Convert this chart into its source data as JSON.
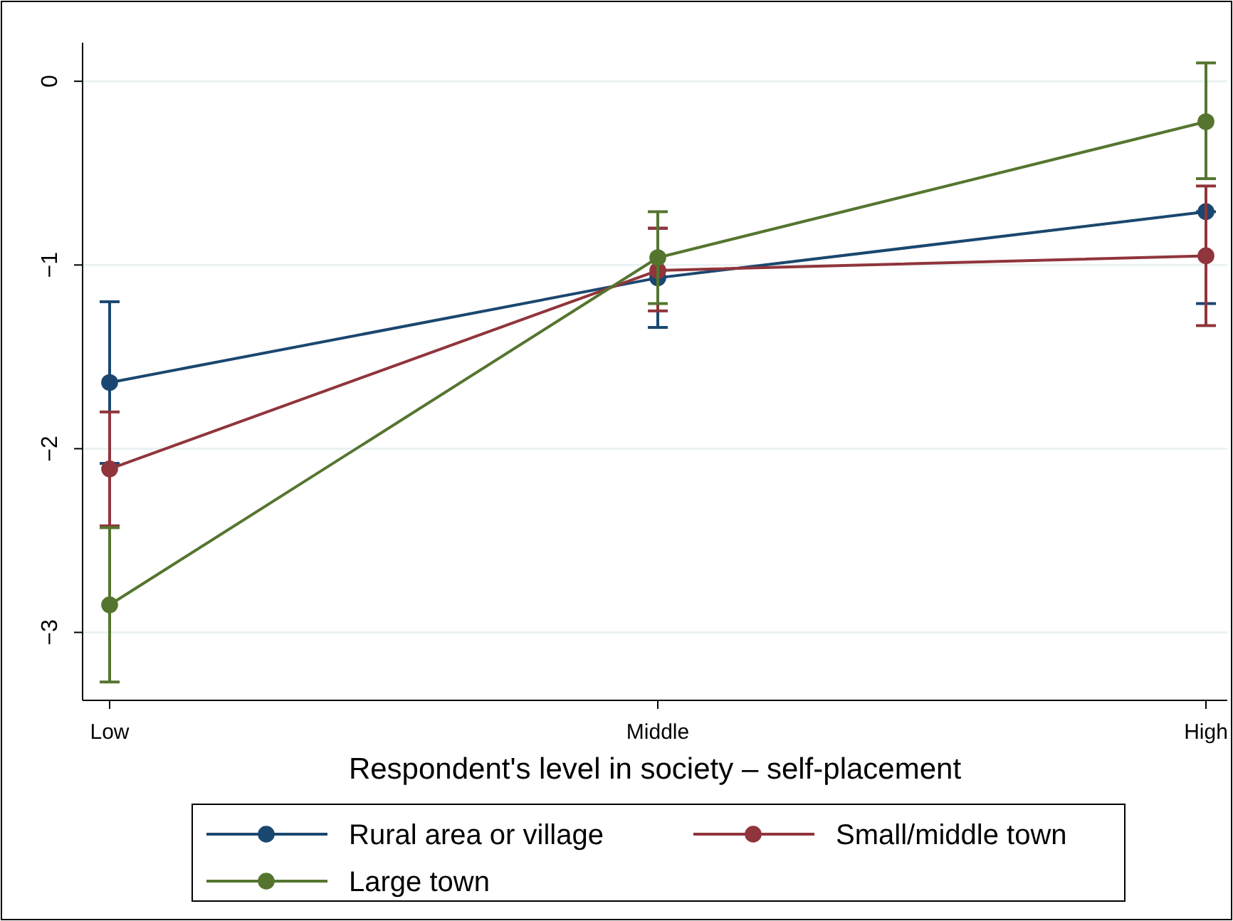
{
  "chart_data": {
    "type": "line",
    "xlabel": "Respondent's level in society – self-placement",
    "categories": [
      "Low",
      "Middle",
      "High"
    ],
    "ylim": [
      -3.37,
      0.21
    ],
    "yticks": [
      0,
      {
        "value": -1,
        "label": "−1"
      },
      {
        "value": -2,
        "label": "−2"
      },
      {
        "value": -3,
        "label": "−3"
      }
    ],
    "grid": "y",
    "legend": "bottom",
    "marker": "circle",
    "line_style": "solid",
    "series": [
      {
        "name": "Rural area or village",
        "color": "#1a476f",
        "values": [
          -1.64,
          -1.07,
          -0.71
        ],
        "errors": [
          [
            -2.08,
            -1.2
          ],
          [
            -1.34,
            -0.8
          ],
          [
            -1.21,
            -0.71
          ]
        ]
      },
      {
        "name": "Small/middle town",
        "color": "#90353b",
        "values": [
          -2.11,
          -1.03,
          -0.95
        ],
        "errors": [
          [
            -2.42,
            -1.8
          ],
          [
            -1.25,
            -0.8
          ],
          [
            -1.33,
            -0.57
          ]
        ]
      },
      {
        "name": "Large town",
        "color": "#55752f",
        "values": [
          -2.85,
          -0.96,
          -0.22
        ],
        "errors": [
          [
            -3.27,
            -2.43
          ],
          [
            -1.21,
            -0.71
          ],
          [
            -0.53,
            0.1
          ]
        ]
      }
    ]
  }
}
